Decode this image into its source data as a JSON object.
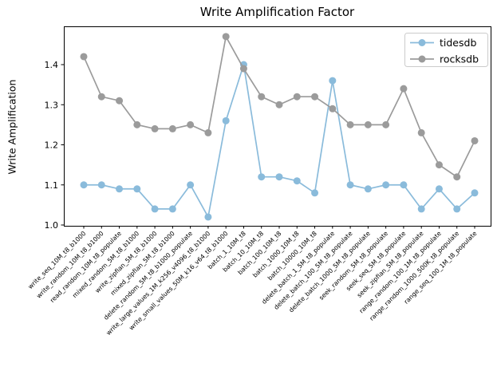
{
  "figure": {
    "title": "Write Amplification Factor",
    "ylabel": "Write Amplification"
  },
  "chart_data": {
    "type": "line",
    "title": "Write Amplification Factor",
    "xlabel": "",
    "ylabel": "Write Amplification",
    "ylim": [
      0.996,
      1.496
    ],
    "yticks": [
      1.0,
      1.1,
      1.2,
      1.3,
      1.4
    ],
    "grid": false,
    "legend_position": "upper right",
    "marker": "circle",
    "categories": [
      "write_seq_10M_t8_b1000",
      "write_random_10M_t8_b1000",
      "read_random_10M_t8_populate",
      "mixed_random_5M_t8_b1000",
      "write_zipfian_5M_t8_b1000",
      "mixed_zipfian_5M_t8_b1000",
      "delete_random_5M_t8_b1000_populate",
      "write_large_values_1M_k256_v4096_t8_b1000",
      "write_small_values_50M_k16_v64_t8_b1000",
      "batch_1_10M_t8",
      "batch_10_10M_t8",
      "batch_100_10M_t8",
      "batch_1000_10M_t8",
      "batch_10000_10M_t8",
      "delete_batch_1_5M_t8_populate",
      "delete_batch_100_5M_t8_populate",
      "delete_batch_1000_5M_t8_populate",
      "seek_random_5M_t8_populate",
      "seek_seq_5M_t8_populate",
      "seek_zipfian_5M_t8_populate",
      "range_random_100_1M_t8_populate",
      "range_random_1000_500K_t8_populate",
      "range_seq_100_1M_t8_populate"
    ],
    "series": [
      {
        "name": "tidesdb",
        "color": "#8abbdb",
        "values": [
          1.1,
          1.1,
          1.09,
          1.09,
          1.04,
          1.04,
          1.1,
          1.02,
          1.26,
          1.4,
          1.12,
          1.12,
          1.11,
          1.08,
          1.36,
          1.1,
          1.09,
          1.1,
          1.1,
          1.04,
          1.09,
          1.04,
          1.08
        ]
      },
      {
        "name": "rocksdb",
        "color": "#9b9b9b",
        "values": [
          1.42,
          1.32,
          1.31,
          1.25,
          1.24,
          1.24,
          1.25,
          1.23,
          1.47,
          1.39,
          1.32,
          1.3,
          1.32,
          1.32,
          1.29,
          1.25,
          1.25,
          1.25,
          1.34,
          1.23,
          1.15,
          1.12,
          1.21
        ]
      }
    ],
    "axis_color": "#000000",
    "legend_border_color": "#cccccc"
  }
}
